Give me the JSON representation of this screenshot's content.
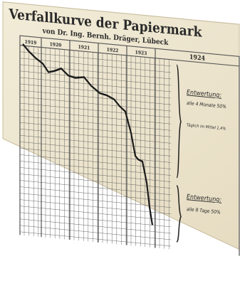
{
  "title": "Verfallkurve der Papiermark",
  "subtitle": "von Dr. Ing. Bernh. Dräger, Lübeck",
  "years": [
    "1919",
    "1920",
    "1921",
    "1922",
    "1923",
    "1924"
  ],
  "annotations": {
    "first_heading": "Entwertung:",
    "first_rate": "alle 4 Monate 50%",
    "daily": "Täglich im Mittel 1,4%",
    "second_heading": "Entwertung:",
    "second_rate": "alle 8 Tage 50%"
  }
}
